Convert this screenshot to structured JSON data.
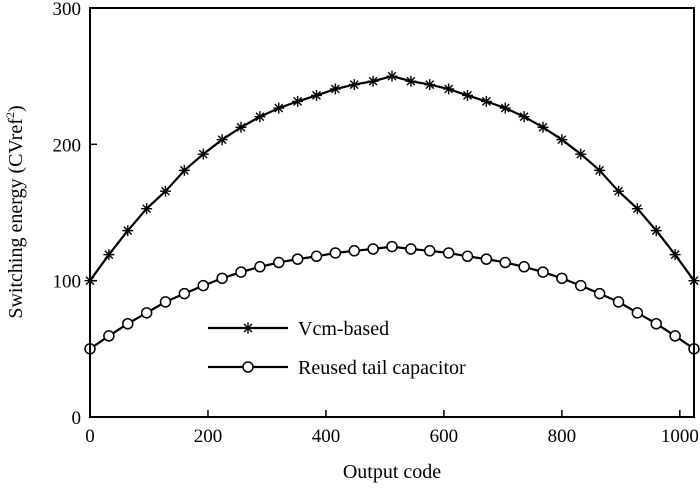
{
  "chart_data": {
    "type": "line",
    "xlabel": "Output code",
    "ylabel_main": "Switching energy (CVref",
    "ylabel_sup": "2",
    "ylabel_close": ")",
    "xlim": [
      0,
      1024
    ],
    "ylim": [
      0,
      300
    ],
    "xticks": [
      0,
      200,
      400,
      600,
      800,
      1000
    ],
    "yticks": [
      0,
      100,
      200,
      300
    ],
    "grid": false,
    "legend_position": "lower-left",
    "series": [
      {
        "name": "Vcm-based",
        "marker": "star",
        "formula_note": "smooth curve from 100 at code 0 to peak 250 at code 512 and back to 100 at code 1024",
        "x": [
          0,
          32,
          64,
          96,
          128,
          160,
          192,
          224,
          256,
          288,
          320,
          352,
          384,
          416,
          448,
          480,
          512,
          544,
          576,
          608,
          640,
          672,
          704,
          736,
          768,
          800,
          832,
          864,
          896,
          928,
          960,
          992,
          1024
        ],
        "values": [
          100,
          119.1,
          136.7,
          152.8,
          165.6,
          180.9,
          192.8,
          203.4,
          212.5,
          220.3,
          226.6,
          231.5,
          235.9,
          240.6,
          243.8,
          246.3,
          250,
          246.3,
          243.8,
          240.6,
          235.9,
          231.5,
          226.6,
          220.3,
          212.5,
          203.4,
          192.8,
          180.9,
          165.6,
          152.8,
          136.7,
          119.1,
          100
        ]
      },
      {
        "name": "Reused tail capacitor",
        "marker": "circle",
        "x": [
          0,
          32,
          64,
          96,
          128,
          160,
          192,
          224,
          256,
          288,
          320,
          352,
          384,
          416,
          448,
          480,
          512,
          544,
          576,
          608,
          640,
          672,
          704,
          736,
          768,
          800,
          832,
          864,
          896,
          928,
          960,
          992,
          1024
        ],
        "values": [
          50,
          59.5,
          68.4,
          76.4,
          84.4,
          90.5,
          96.4,
          101.7,
          106.3,
          110.2,
          113.3,
          115.8,
          117.9,
          120.3,
          121.9,
          123.2,
          125,
          123.2,
          121.9,
          120.3,
          117.9,
          115.8,
          113.3,
          110.2,
          106.3,
          101.7,
          96.4,
          90.5,
          84.4,
          76.4,
          68.4,
          59.5,
          50
        ]
      }
    ]
  }
}
